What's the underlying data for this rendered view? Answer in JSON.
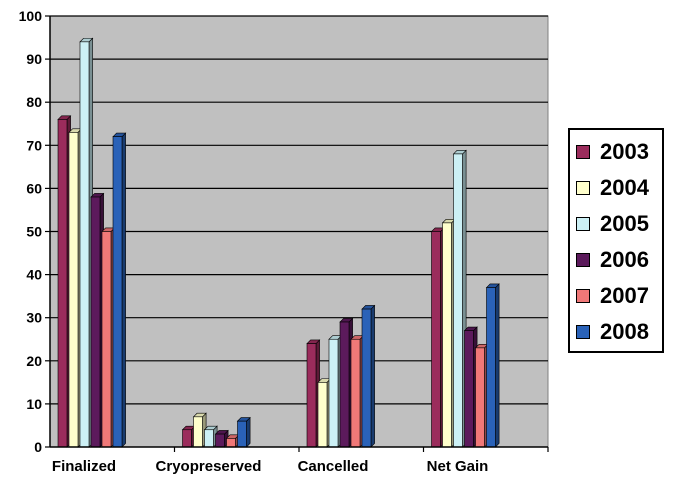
{
  "chart_data": {
    "type": "bar",
    "categories": [
      "Finalized",
      "Cryopreserved",
      "Cancelled",
      "Net Gain"
    ],
    "series": [
      {
        "name": "2003",
        "color": "#9b2c5c",
        "values": [
          76,
          4,
          24,
          50
        ]
      },
      {
        "name": "2004",
        "color": "#ffffcc",
        "values": [
          73,
          7,
          15,
          52
        ]
      },
      {
        "name": "2005",
        "color": "#ccf0f5",
        "values": [
          94,
          4,
          25,
          68
        ]
      },
      {
        "name": "2006",
        "color": "#5c1a5c",
        "values": [
          58,
          3,
          29,
          27
        ]
      },
      {
        "name": "2007",
        "color": "#f07878",
        "values": [
          50,
          2,
          25,
          23
        ]
      },
      {
        "name": "2008",
        "color": "#2a62b8",
        "values": [
          72,
          6,
          32,
          37
        ]
      }
    ],
    "ylim": [
      0,
      100
    ],
    "yticks": [
      "0",
      "10",
      "20",
      "30",
      "40",
      "50",
      "60",
      "70",
      "80",
      "90",
      "100"
    ],
    "grid": true,
    "legend": "right",
    "plot_background": "#c0c0c0"
  }
}
